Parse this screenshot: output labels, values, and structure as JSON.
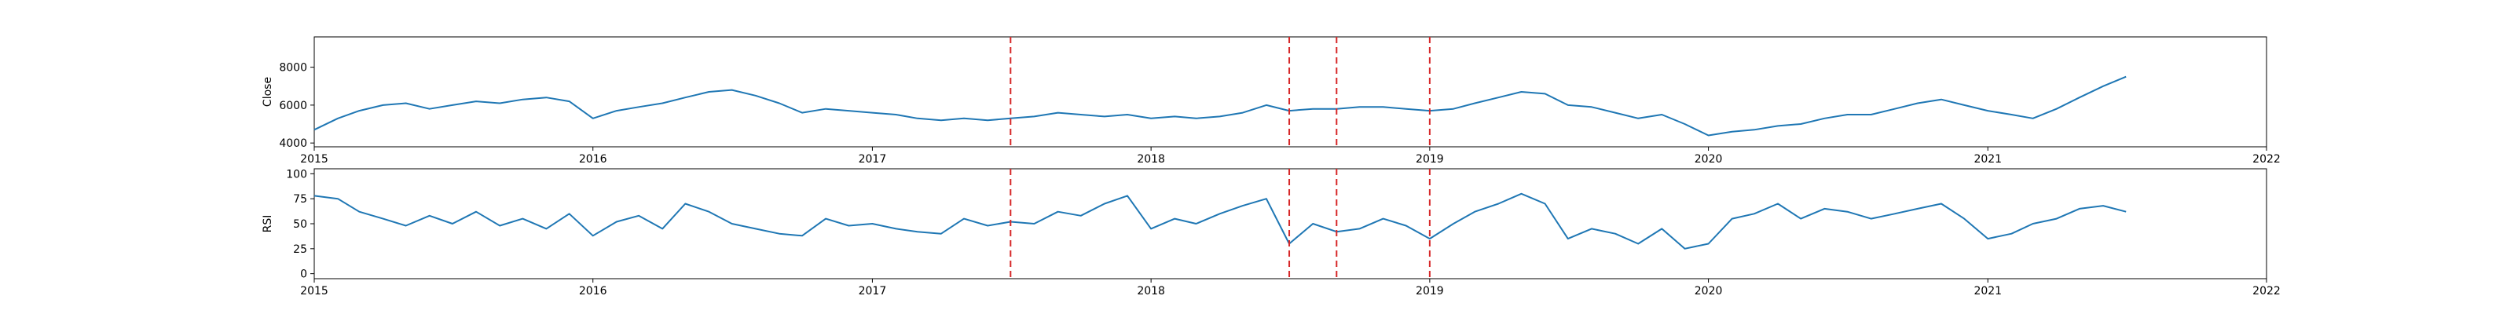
{
  "colors": {
    "series": "#1f77b4",
    "marker": "#d62728",
    "axis": "#000000",
    "background": "#ffffff"
  },
  "chart_data": [
    {
      "type": "line",
      "ylabel": "Close",
      "xlim": [
        "2015-01-01",
        "2022-01-01"
      ],
      "ylim": [
        3800,
        9600
      ],
      "grid": false,
      "x_ticks": [
        {
          "label": "2015",
          "date": "2015-01-01"
        },
        {
          "label": "2016",
          "date": "2016-01-01"
        },
        {
          "label": "2017",
          "date": "2017-01-01"
        },
        {
          "label": "2018",
          "date": "2018-01-01"
        },
        {
          "label": "2019",
          "date": "2019-01-01"
        },
        {
          "label": "2020",
          "date": "2020-01-01"
        },
        {
          "label": "2021",
          "date": "2021-01-01"
        },
        {
          "label": "2022",
          "date": "2022-01-01"
        }
      ],
      "y_ticks": [
        {
          "label": "4000",
          "value": 4000
        },
        {
          "label": "6000",
          "value": 6000
        },
        {
          "label": "8000",
          "value": 8000
        }
      ],
      "vlines": [
        "2017-07-01",
        "2018-07-01",
        "2018-09-01",
        "2019-01-01"
      ],
      "series": [
        {
          "x": [
            "2015-01-01",
            "2015-02-01",
            "2015-03-01",
            "2015-04-01",
            "2015-05-01",
            "2015-06-01",
            "2015-07-01",
            "2015-08-01",
            "2015-09-01",
            "2015-10-01",
            "2015-11-01",
            "2015-12-01",
            "2016-01-01",
            "2016-02-01",
            "2016-03-01",
            "2016-04-01",
            "2016-05-01",
            "2016-06-01",
            "2016-07-01",
            "2016-08-01",
            "2016-09-01",
            "2016-10-01",
            "2016-11-01",
            "2016-12-01",
            "2017-01-01",
            "2017-02-01",
            "2017-03-01",
            "2017-04-01",
            "2017-05-01",
            "2017-06-01",
            "2017-07-01",
            "2017-08-01",
            "2017-09-01",
            "2017-10-01",
            "2017-11-01",
            "2017-12-01",
            "2018-01-01",
            "2018-02-01",
            "2018-03-01",
            "2018-04-01",
            "2018-05-01",
            "2018-06-01",
            "2018-07-01",
            "2018-08-01",
            "2018-09-01",
            "2018-10-01",
            "2018-11-01",
            "2018-12-01",
            "2019-01-01",
            "2019-02-01",
            "2019-03-01",
            "2019-04-01",
            "2019-05-01",
            "2019-06-01",
            "2019-07-01",
            "2019-08-01",
            "2019-09-01",
            "2019-10-01",
            "2019-11-01",
            "2019-12-01",
            "2020-01-01",
            "2020-02-01",
            "2020-03-01",
            "2020-04-01",
            "2020-05-01",
            "2020-06-01",
            "2020-07-01",
            "2020-08-01",
            "2020-09-01",
            "2020-10-01",
            "2020-11-01",
            "2020-12-01",
            "2021-01-01",
            "2021-02-01",
            "2021-03-01",
            "2021-04-01",
            "2021-05-01",
            "2021-06-01",
            "2021-07-01"
          ],
          "y": [
            4700,
            5300,
            5700,
            6000,
            6100,
            5800,
            6000,
            6200,
            6100,
            6300,
            6400,
            6200,
            5300,
            5700,
            5900,
            6100,
            6400,
            6700,
            6800,
            6500,
            6100,
            5600,
            5800,
            5700,
            5600,
            5500,
            5300,
            5200,
            5300,
            5200,
            5300,
            5400,
            5600,
            5500,
            5400,
            5500,
            5300,
            5400,
            5300,
            5400,
            5600,
            6000,
            5700,
            5800,
            5800,
            5900,
            5900,
            5800,
            5700,
            5800,
            6100,
            6400,
            6700,
            6600,
            6000,
            5900,
            5600,
            5300,
            5500,
            5000,
            4400,
            4600,
            4700,
            4900,
            5000,
            5300,
            5500,
            5500,
            5800,
            6100,
            6300,
            6000,
            5700,
            5500,
            5300,
            5800,
            6400,
            7000,
            7500
          ]
        }
      ]
    },
    {
      "type": "line",
      "ylabel": "RSI",
      "xlim": [
        "2015-01-01",
        "2022-01-01"
      ],
      "ylim": [
        -5,
        105
      ],
      "grid": false,
      "x_ticks": [
        {
          "label": "2015",
          "date": "2015-01-01"
        },
        {
          "label": "2016",
          "date": "2016-01-01"
        },
        {
          "label": "2017",
          "date": "2017-01-01"
        },
        {
          "label": "2018",
          "date": "2018-01-01"
        },
        {
          "label": "2019",
          "date": "2019-01-01"
        },
        {
          "label": "2020",
          "date": "2020-01-01"
        },
        {
          "label": "2021",
          "date": "2021-01-01"
        },
        {
          "label": "2022",
          "date": "2022-01-01"
        }
      ],
      "y_ticks": [
        {
          "label": "0",
          "value": 0
        },
        {
          "label": "25",
          "value": 25
        },
        {
          "label": "50",
          "value": 50
        },
        {
          "label": "75",
          "value": 75
        },
        {
          "label": "100",
          "value": 100
        }
      ],
      "vlines": [
        "2017-07-01",
        "2018-07-01",
        "2018-09-01",
        "2019-01-01"
      ],
      "series": [
        {
          "x": [
            "2015-01-01",
            "2015-02-01",
            "2015-03-01",
            "2015-04-01",
            "2015-05-01",
            "2015-06-01",
            "2015-07-01",
            "2015-08-01",
            "2015-09-01",
            "2015-10-01",
            "2015-11-01",
            "2015-12-01",
            "2016-01-01",
            "2016-02-01",
            "2016-03-01",
            "2016-04-01",
            "2016-05-01",
            "2016-06-01",
            "2016-07-01",
            "2016-08-01",
            "2016-09-01",
            "2016-10-01",
            "2016-11-01",
            "2016-12-01",
            "2017-01-01",
            "2017-02-01",
            "2017-03-01",
            "2017-04-01",
            "2017-05-01",
            "2017-06-01",
            "2017-07-01",
            "2017-08-01",
            "2017-09-01",
            "2017-10-01",
            "2017-11-01",
            "2017-12-01",
            "2018-01-01",
            "2018-02-01",
            "2018-03-01",
            "2018-04-01",
            "2018-05-01",
            "2018-06-01",
            "2018-07-01",
            "2018-08-01",
            "2018-09-01",
            "2018-10-01",
            "2018-11-01",
            "2018-12-01",
            "2019-01-01",
            "2019-02-01",
            "2019-03-01",
            "2019-04-01",
            "2019-05-01",
            "2019-06-01",
            "2019-07-01",
            "2019-08-01",
            "2019-09-01",
            "2019-10-01",
            "2019-11-01",
            "2019-12-01",
            "2020-01-01",
            "2020-02-01",
            "2020-03-01",
            "2020-04-01",
            "2020-05-01",
            "2020-06-01",
            "2020-07-01",
            "2020-08-01",
            "2020-09-01",
            "2020-10-01",
            "2020-11-01",
            "2020-12-01",
            "2021-01-01",
            "2021-02-01",
            "2021-03-01",
            "2021-04-01",
            "2021-05-01",
            "2021-06-01",
            "2021-07-01"
          ],
          "y": [
            78,
            75,
            62,
            55,
            48,
            58,
            50,
            62,
            48,
            55,
            45,
            60,
            38,
            52,
            58,
            45,
            70,
            62,
            50,
            45,
            40,
            38,
            55,
            48,
            50,
            45,
            42,
            40,
            55,
            48,
            52,
            50,
            62,
            58,
            70,
            78,
            45,
            55,
            50,
            60,
            68,
            75,
            30,
            50,
            42,
            45,
            55,
            48,
            35,
            50,
            62,
            70,
            80,
            70,
            35,
            45,
            40,
            30,
            45,
            25,
            30,
            55,
            60,
            70,
            55,
            65,
            62,
            55,
            60,
            65,
            70,
            55,
            35,
            40,
            50,
            55,
            65,
            68,
            62
          ]
        }
      ]
    }
  ]
}
